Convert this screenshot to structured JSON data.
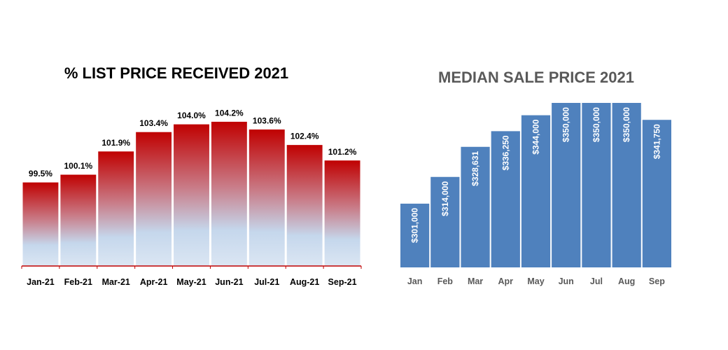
{
  "chart_data": [
    {
      "type": "bar",
      "title": "% LIST PRICE RECEIVED 2021",
      "categories": [
        "Jan-21",
        "Feb-21",
        "Mar-21",
        "Apr-21",
        "May-21",
        "Jun-21",
        "Jul-21",
        "Aug-21",
        "Sep-21"
      ],
      "values": [
        99.5,
        100.1,
        101.9,
        103.4,
        104.0,
        104.2,
        103.6,
        102.4,
        101.2
      ],
      "value_labels": [
        "99.5%",
        "100.1%",
        "101.9%",
        "103.4%",
        "104.0%",
        "104.2%",
        "103.6%",
        "102.4%",
        "101.2%"
      ],
      "ylim": [
        93,
        105.2
      ],
      "grid": false,
      "colors": {
        "bar_top": "#c00000",
        "bar_bottom": "#c5d7ec",
        "axis": "#c00000"
      }
    },
    {
      "type": "bar",
      "title": "MEDIAN SALE PRICE 2021",
      "categories": [
        "Jan",
        "Feb",
        "Mar",
        "Apr",
        "May",
        "Jun",
        "Jul",
        "Aug",
        "Sep"
      ],
      "values": [
        301000,
        314000,
        328631,
        336250,
        344000,
        350000,
        350000,
        350000,
        341750
      ],
      "value_labels": [
        "$301,000",
        "$314,000",
        "$328,631",
        "$336,250",
        "$344,000",
        "$350,000",
        "$350,000",
        "$350,000",
        "$341,750"
      ],
      "ylim": [
        270000,
        350000
      ],
      "grid": false,
      "colors": {
        "bar": "#4f81bd",
        "title": "#595959",
        "label": "#ffffff"
      }
    }
  ]
}
